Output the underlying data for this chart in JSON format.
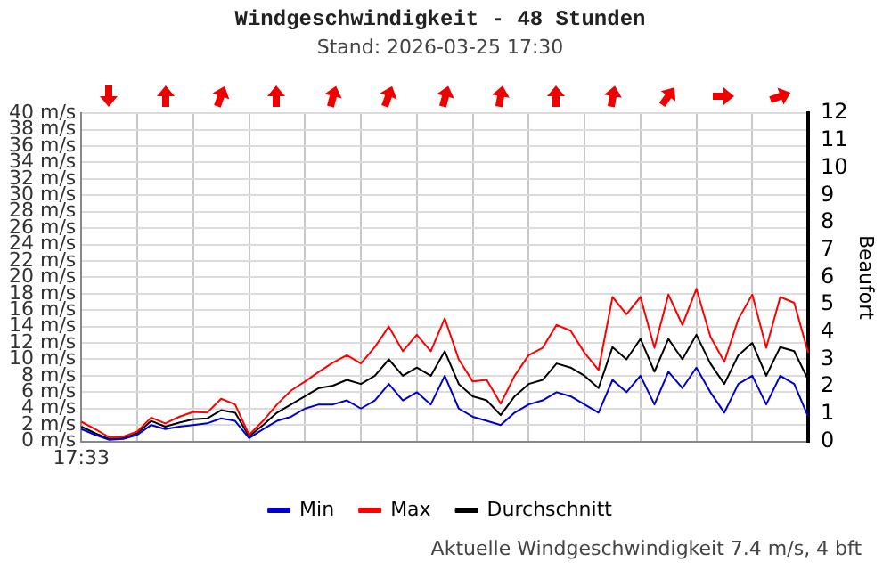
{
  "chart_data": {
    "type": "line",
    "title": "Windgeschwindigkeit - 48 Stunden",
    "subtitle": "Stand: 2026-03-25 17:30",
    "y2label": "Beaufort",
    "annotations": [
      "Aktuelle Windgeschwindigkeit 7.4 m/s, 4 bft"
    ],
    "y2lim": [
      0,
      12
    ],
    "y2ticks": [
      0,
      1,
      2,
      3,
      4,
      5,
      6,
      7,
      8,
      9,
      10,
      11,
      12
    ],
    "categories": [
      "17:33",
      null,
      null,
      null,
      null,
      null,
      null,
      null,
      null,
      null,
      null,
      null,
      null,
      null,
      null,
      null,
      null,
      null,
      null,
      null,
      null,
      null,
      null,
      null,
      null,
      null,
      null,
      null,
      null,
      null,
      null,
      null,
      null,
      null,
      null,
      null,
      null,
      null,
      null,
      null,
      null,
      null,
      null,
      null,
      null,
      null,
      null,
      null,
      null,
      null,
      null,
      null,
      null
    ],
    "series": [
      {
        "name": "Min",
        "color": "#0000cc",
        "values": [
          1.5,
          0.8,
          0.2,
          0.3,
          0.8,
          2.0,
          1.5,
          1.8,
          2.0,
          2.2,
          2.8,
          2.5,
          0.4,
          1.5,
          2.5,
          3.0,
          4.0,
          4.5,
          4.5,
          5.0,
          4.0,
          5.0,
          7.0,
          5.0,
          6.0,
          4.5,
          8.0,
          4.0,
          3.0,
          2.5,
          2.0,
          3.5,
          4.5,
          5.0,
          6.0,
          5.5,
          4.5,
          3.5,
          7.5,
          6.0,
          8.0,
          4.5,
          8.5,
          6.5,
          9.0,
          6.0,
          3.5,
          7.0,
          8.0,
          4.5,
          8.0,
          7.0,
          3.0
        ]
      },
      {
        "name": "Max",
        "color": "#ff0000",
        "values": [
          2.4,
          1.5,
          0.5,
          0.6,
          1.2,
          2.9,
          2.2,
          3.0,
          3.6,
          3.5,
          5.2,
          4.5,
          0.8,
          2.5,
          4.5,
          6.2,
          7.3,
          8.5,
          9.6,
          10.5,
          9.5,
          11.5,
          14.0,
          11,
          13,
          11,
          15.0,
          10,
          7.3,
          7.5,
          4.6,
          8,
          10.5,
          11.4,
          14.2,
          13.5,
          10.8,
          8.7,
          17.6,
          15.5,
          17.6,
          11.4,
          17.9,
          14.2,
          18.6,
          12.8,
          9.7,
          14.9,
          17.9,
          11.4,
          17.6,
          16.9,
          10.8
        ]
      },
      {
        "name": "Durchschnitt",
        "color": "#000000",
        "values": [
          1.8,
          1.0,
          0.3,
          0.4,
          1.0,
          2.5,
          1.8,
          2.3,
          2.7,
          2.8,
          3.8,
          3.5,
          0.6,
          2.0,
          3.5,
          4.5,
          5.5,
          6.5,
          6.8,
          7.5,
          7.0,
          8.0,
          10.0,
          8.0,
          9.0,
          8.0,
          11.0,
          7.0,
          5.5,
          5.0,
          3.2,
          5.5,
          7.0,
          7.5,
          9.5,
          9.0,
          8.0,
          6.5,
          11.5,
          10.0,
          12.5,
          8.5,
          12.5,
          10.0,
          13.0,
          9.5,
          7.0,
          10.5,
          12.0,
          8.0,
          11.5,
          11.0,
          7.5
        ]
      }
    ],
    "ylim": [
      0,
      40
    ],
    "yticks": [
      {
        "value": 0,
        "label": "0 m/s"
      },
      {
        "value": 2,
        "label": "2 m/s"
      },
      {
        "value": 4,
        "label": "4 m/s"
      },
      {
        "value": 6,
        "label": "6 m/s"
      },
      {
        "value": 8,
        "label": "8 m/s"
      },
      {
        "value": 10,
        "label": "10 m/s"
      },
      {
        "value": 12,
        "label": "12 m/s"
      },
      {
        "value": 14,
        "label": "14 m/s"
      },
      {
        "value": 16,
        "label": "16 m/s"
      },
      {
        "value": 18,
        "label": "18 m/s"
      },
      {
        "value": 20,
        "label": "20 m/s"
      },
      {
        "value": 22,
        "label": "22 m/s"
      },
      {
        "value": 24,
        "label": "24 m/s"
      },
      {
        "value": 26,
        "label": "26 m/s"
      },
      {
        "value": 28,
        "label": "28 m/s"
      },
      {
        "value": 30,
        "label": "30 m/s"
      },
      {
        "value": 32,
        "label": "32 m/s"
      },
      {
        "value": 34,
        "label": "34 m/s"
      },
      {
        "value": 36,
        "label": "36 m/s"
      },
      {
        "value": 38,
        "label": "38 m/s"
      },
      {
        "value": 40,
        "label": "40 m/s"
      }
    ],
    "grid": true,
    "legend": "bottom",
    "marker": "none",
    "line_style": "solid"
  }
}
